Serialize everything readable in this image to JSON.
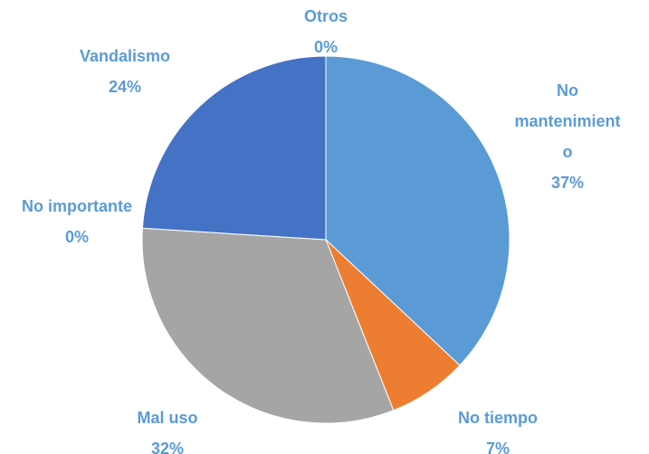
{
  "chart_data": {
    "type": "pie",
    "categories": [
      "No mantenimiento",
      "No tiempo",
      "Mal uso",
      "No importante",
      "Vandalismo",
      "Otros"
    ],
    "values": [
      37,
      7,
      32,
      0,
      24,
      0
    ],
    "value_labels": [
      "37%",
      "7%",
      "32%",
      "0%",
      "24%",
      "0%"
    ],
    "colors": [
      "#5b9bd5",
      "#ed7d31",
      "#a5a5a5",
      "#ffc000",
      "#4472c4",
      "#70ad47"
    ]
  }
}
